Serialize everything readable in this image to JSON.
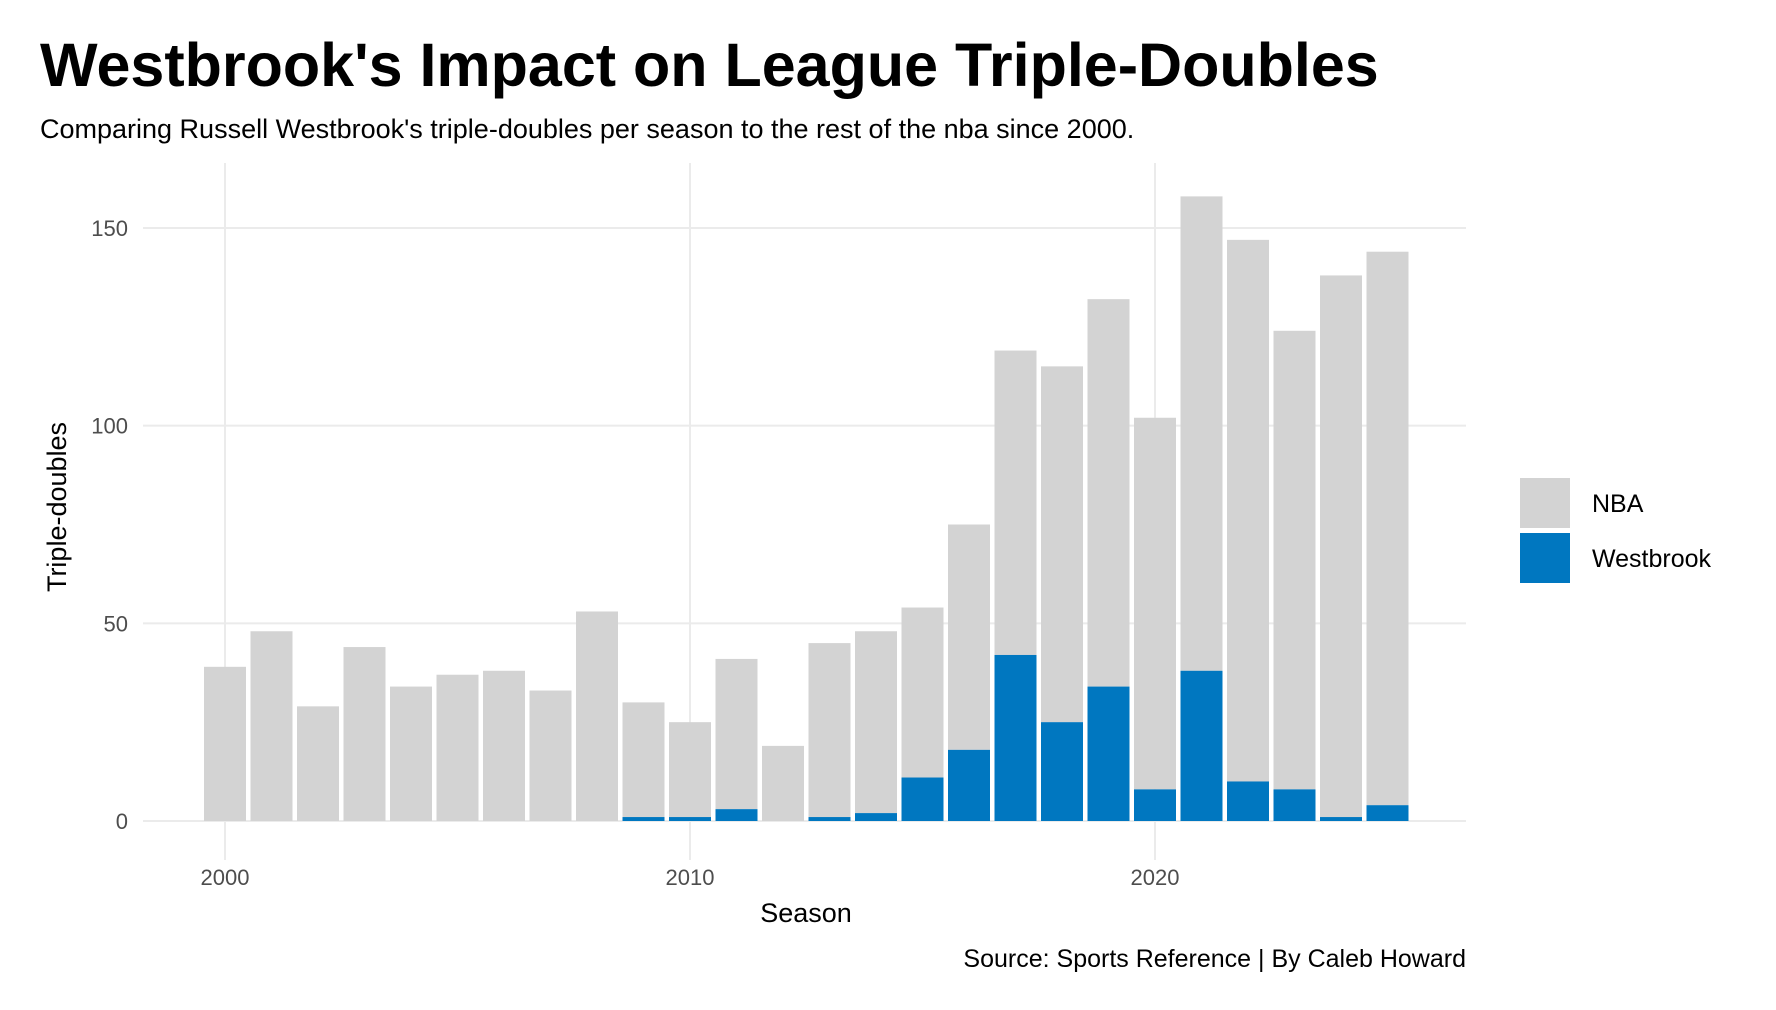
{
  "chart_data": {
    "type": "bar",
    "stacked": true,
    "title": "Westbrook's Impact on League Triple-Doubles",
    "subtitle": "Comparing Russell Westbrook's triple-doubles per season to the rest of the nba since 2000.",
    "xlabel": "Season",
    "ylabel": "Triple-doubles",
    "caption": "Source: Sports Reference | By Caleb Howard",
    "x": [
      2000,
      2001,
      2002,
      2003,
      2004,
      2005,
      2006,
      2007,
      2008,
      2009,
      2010,
      2011,
      2012,
      2013,
      2014,
      2015,
      2016,
      2017,
      2018,
      2019,
      2020,
      2021,
      2022,
      2023,
      2024,
      2025
    ],
    "series": [
      {
        "name": "NBA",
        "color": "#d3d3d3",
        "values": [
          39,
          48,
          29,
          44,
          34,
          37,
          38,
          33,
          53,
          29,
          24,
          38,
          19,
          44,
          46,
          43,
          57,
          77,
          90,
          98,
          94,
          120,
          137,
          116,
          137,
          140
        ]
      },
      {
        "name": "Westbrook",
        "color": "#0077c0",
        "values": [
          0,
          0,
          0,
          0,
          0,
          0,
          0,
          0,
          0,
          1,
          1,
          3,
          0,
          1,
          2,
          11,
          18,
          42,
          25,
          34,
          8,
          38,
          10,
          8,
          1,
          4
        ]
      }
    ],
    "xticks": [
      "2000",
      "2010",
      "2020"
    ],
    "yticks": [
      "0",
      "50",
      "100",
      "150"
    ],
    "xlim": [
      1999.5,
      2025.5
    ],
    "ylim": [
      0,
      160
    ],
    "grid": true,
    "legend_position": "right"
  }
}
